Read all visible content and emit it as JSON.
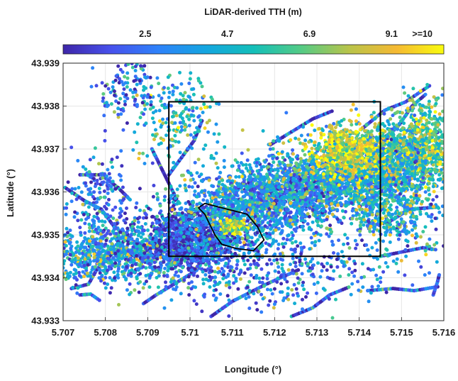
{
  "chart_data": {
    "type": "scatter",
    "title": "",
    "xlabel": "Longitude (°)",
    "ylabel": "Latitude (°)",
    "xlim": [
      5.707,
      5.716
    ],
    "ylim": [
      43.933,
      43.939
    ],
    "xticks": [
      "5.707",
      "5.708",
      "5.709",
      "5.71",
      "5.711",
      "5.712",
      "5.713",
      "5.714",
      "5.715",
      "5.716"
    ],
    "yticks": [
      "43.933",
      "43.934",
      "43.935",
      "43.936",
      "43.937",
      "43.938",
      "43.939"
    ],
    "grid": true,
    "colorbar": {
      "label": "LiDAR-derived TTH (m)",
      "ticks": [
        "2.5",
        "4.7",
        "6.9",
        "9.1",
        ">=10"
      ],
      "range": [
        0.3,
        10.5
      ],
      "colormap": "parula",
      "location": "top"
    },
    "box": {
      "lon": [
        5.7095,
        5.7145
      ],
      "lat": [
        43.9345,
        43.9381
      ]
    },
    "polygon": {
      "lon": [
        5.71035,
        5.71075,
        5.71115,
        5.71135,
        5.7116,
        5.71175,
        5.7115,
        5.7111,
        5.71075,
        5.7106,
        5.71045,
        5.71035,
        5.7102,
        5.71035
      ],
      "lat": [
        43.93573,
        43.93563,
        43.93553,
        43.93548,
        43.93518,
        43.93488,
        43.93463,
        43.93468,
        43.93478,
        43.93498,
        43.93528,
        43.93548,
        43.93563,
        43.93573
      ]
    },
    "clusters": [
      {
        "lon": 5.7083,
        "lat": 43.93452,
        "s_lon": 0.00095,
        "s_lat": 0.00033,
        "n": 900,
        "mean": 3.8
      },
      {
        "lon": 5.71,
        "lat": 43.93495,
        "s_lon": 0.00065,
        "s_lat": 0.00035,
        "n": 1200,
        "mean": 1.4
      },
      {
        "lon": 5.7112,
        "lat": 43.93565,
        "s_lon": 0.00075,
        "s_lat": 0.00042,
        "n": 900,
        "mean": 3.8
      },
      {
        "lon": 5.7124,
        "lat": 43.93598,
        "s_lon": 0.00085,
        "s_lat": 0.00042,
        "n": 900,
        "mean": 3.2
      },
      {
        "lon": 5.7136,
        "lat": 43.93625,
        "s_lon": 0.00095,
        "s_lat": 0.00048,
        "n": 1000,
        "mean": 4.2
      },
      {
        "lon": 5.7148,
        "lat": 43.93685,
        "s_lon": 0.00075,
        "s_lat": 0.00048,
        "n": 1000,
        "mean": 5.2
      },
      {
        "lon": 5.7137,
        "lat": 43.93692,
        "s_lon": 0.00042,
        "s_lat": 0.00028,
        "n": 550,
        "mean": 8.4
      },
      {
        "lon": 5.7156,
        "lat": 43.9372,
        "s_lon": 0.00038,
        "s_lat": 0.00045,
        "n": 400,
        "mean": 6.5
      },
      {
        "lon": 5.711,
        "lat": 43.93517,
        "s_lon": 0.00016,
        "s_lat": 9e-05,
        "n": 150,
        "mean": 8.2
      },
      {
        "lon": 5.7096,
        "lat": 43.9377,
        "s_lon": 0.00055,
        "s_lat": 0.00055,
        "n": 220,
        "mean": 4.8
      },
      {
        "lon": 5.7085,
        "lat": 43.9385,
        "s_lon": 0.00035,
        "s_lat": 0.0004,
        "n": 120,
        "mean": 2.0
      },
      {
        "lon": 5.7117,
        "lat": 43.93425,
        "s_lon": 0.0016,
        "s_lat": 0.00045,
        "n": 500,
        "mean": 2.6
      },
      {
        "lon": 5.7148,
        "lat": 43.9358,
        "s_lon": 0.0006,
        "s_lat": 0.0006,
        "n": 500,
        "mean": 4.2
      },
      {
        "lon": 5.7078,
        "lat": 43.9357,
        "s_lon": 0.0004,
        "s_lat": 0.0006,
        "n": 200,
        "mean": 2.5
      }
    ],
    "tracks": [
      {
        "lon": [
          5.70705,
          5.7075,
          5.7079,
          5.7082,
          5.7086
        ],
        "lat": [
          43.9361,
          43.9358,
          43.9356,
          43.9352,
          43.9349
        ]
      },
      {
        "lon": [
          5.7072,
          5.7076,
          5.7078,
          5.7083
        ],
        "lat": [
          43.93375,
          43.93385,
          43.9342,
          43.9347
        ]
      },
      {
        "lon": [
          5.7089,
          5.7092,
          5.7097,
          5.7102
        ],
        "lat": [
          43.9334,
          43.9336,
          43.9339,
          43.9342
        ]
      },
      {
        "lon": [
          5.7105,
          5.711,
          5.7118,
          5.7126
        ],
        "lat": [
          43.9331,
          43.93345,
          43.93385,
          43.9342
        ]
      },
      {
        "lon": [
          5.7124,
          5.7129,
          5.7133,
          5.7138
        ],
        "lat": [
          43.9331,
          43.9333,
          43.9336,
          43.9338
        ]
      },
      {
        "lon": [
          5.7142,
          5.7148,
          5.7153,
          5.7159
        ],
        "lat": [
          43.9337,
          43.93375,
          43.9337,
          43.9338
        ]
      },
      {
        "lon": [
          5.7145,
          5.715,
          5.7155,
          5.71585
        ],
        "lat": [
          43.9345,
          43.9346,
          43.9347,
          43.93465
        ]
      },
      {
        "lon": [
          5.7142,
          5.7147,
          5.7152,
          5.7159
        ],
        "lat": [
          43.9352,
          43.9353,
          43.9356,
          43.93565
        ]
      },
      {
        "lon": [
          5.7141,
          5.7146,
          5.7151,
          5.7157
        ],
        "lat": [
          43.9375,
          43.9379,
          43.9381,
          43.9385
        ]
      },
      {
        "lon": [
          5.7145,
          5.7149,
          5.71525,
          5.7156
        ],
        "lat": [
          43.9372,
          43.9375,
          43.938,
          43.9383
        ]
      },
      {
        "lon": [
          5.7119,
          5.7124,
          5.7129,
          5.7134
        ],
        "lat": [
          43.9371,
          43.9374,
          43.9377,
          43.9379
        ]
      },
      {
        "lon": [
          5.7095,
          5.7098,
          5.7101,
          5.7103
        ],
        "lat": [
          43.9364,
          43.9368,
          43.9372,
          43.9377
        ]
      },
      {
        "lon": [
          5.7074,
          5.7079,
          5.7083,
          5.7086
        ],
        "lat": [
          43.9364,
          43.9364,
          43.9361,
          43.9358
        ]
      },
      {
        "lon": [
          5.7074,
          5.70765,
          5.7079
        ],
        "lat": [
          43.9336,
          43.93362,
          43.93345
        ]
      },
      {
        "lon": [
          5.71575,
          5.71585,
          5.7159
        ],
        "lat": [
          43.9336,
          43.9339,
          43.9341
        ]
      },
      {
        "lon": [
          5.7091,
          5.7093,
          5.7095,
          5.7097
        ],
        "lat": [
          43.937,
          43.9366,
          43.9362,
          43.9358
        ]
      }
    ]
  }
}
